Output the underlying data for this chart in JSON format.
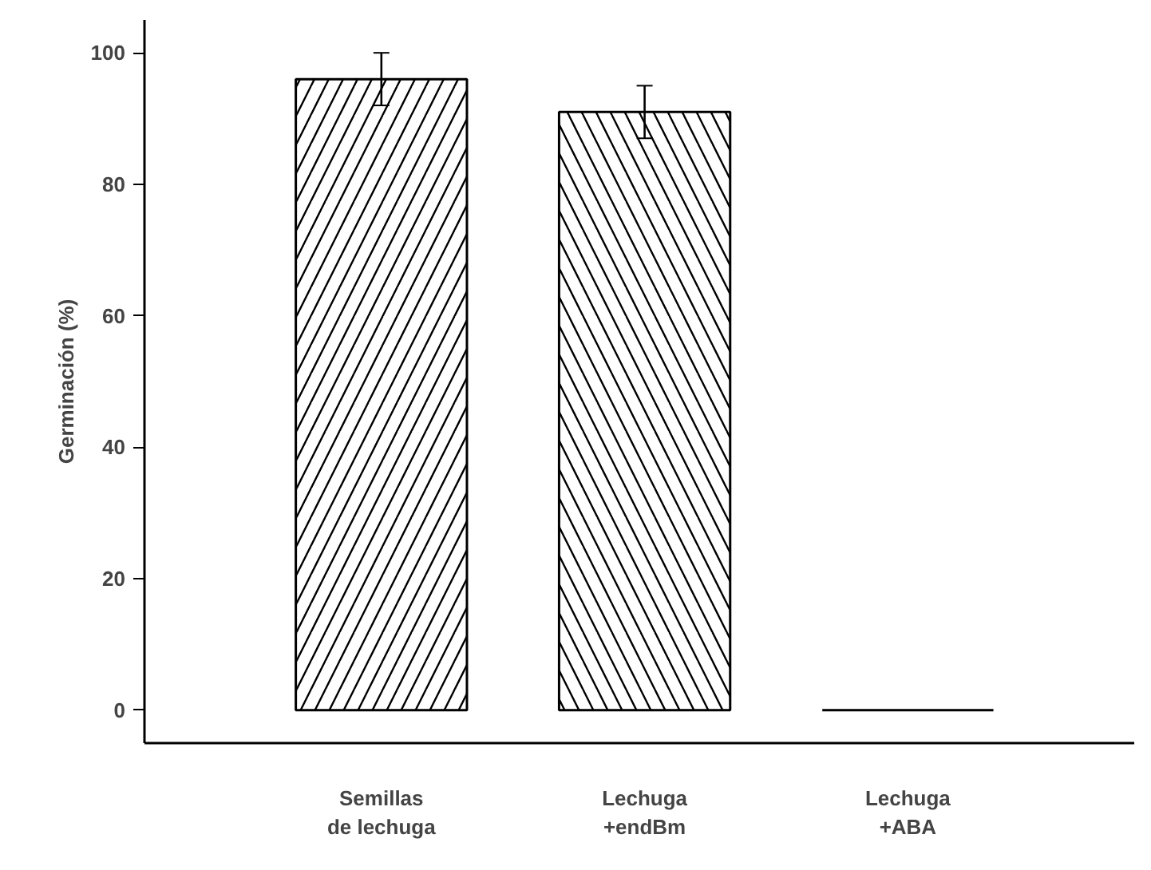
{
  "chart_data": {
    "type": "bar",
    "ylabel": "Germinación (%)",
    "categories": [
      "Semillas\nde lechuga",
      "Lechuga\n+endBm",
      "Lechuga\n+ABA"
    ],
    "values": [
      96,
      91,
      0
    ],
    "errors": [
      4,
      4,
      null
    ],
    "colors": [
      "#ffffff",
      "#ffffff",
      "#000000"
    ],
    "ylim": [
      -5,
      105
    ],
    "yticks": [
      0,
      20,
      40,
      60,
      80,
      100
    ],
    "grid": false
  }
}
